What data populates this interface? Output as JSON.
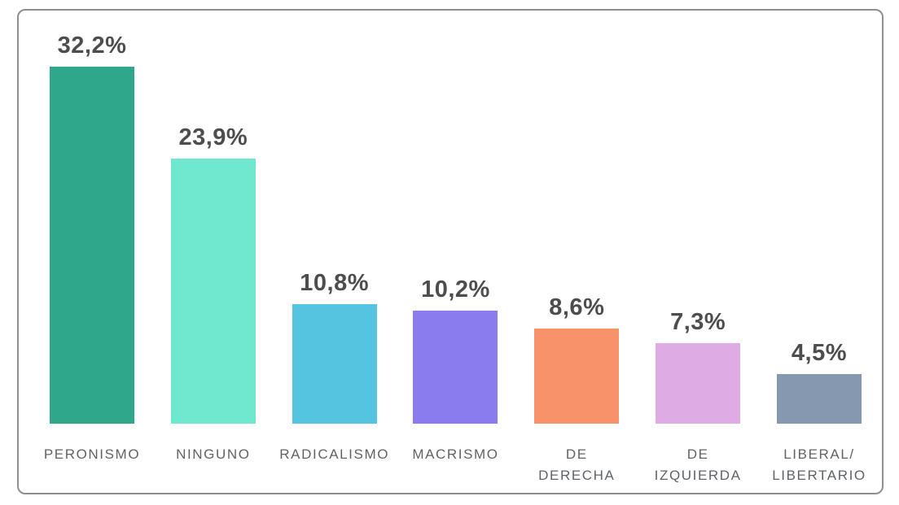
{
  "chart_data": {
    "type": "bar",
    "categories": [
      "PERONISMO",
      "NINGUNO",
      "RADICALISMO",
      "MACRISMO",
      "DE DERECHA",
      "DE IZQUIERDA",
      "LIBERAL/\nLIBERTARIO"
    ],
    "values": [
      32.2,
      23.9,
      10.8,
      10.2,
      8.6,
      7.3,
      4.5
    ],
    "value_labels": [
      "32,2%",
      "23,9%",
      "10,8%",
      "10,2%",
      "8,6%",
      "7,3%",
      "4,5%"
    ],
    "bar_colors": [
      "#2ea78b",
      "#6fe8cf",
      "#55c4e0",
      "#8a7bef",
      "#f8926a",
      "#dfabe4",
      "#8598b0"
    ],
    "title": "",
    "xlabel": "",
    "ylabel": "",
    "ylim": [
      0,
      34
    ],
    "grid": false,
    "legend": "none",
    "value_label_color": "#4d4d4d",
    "category_label_color": "#5f6368",
    "frame_border_color": "#8f8f8f",
    "background": "#ffffff"
  }
}
